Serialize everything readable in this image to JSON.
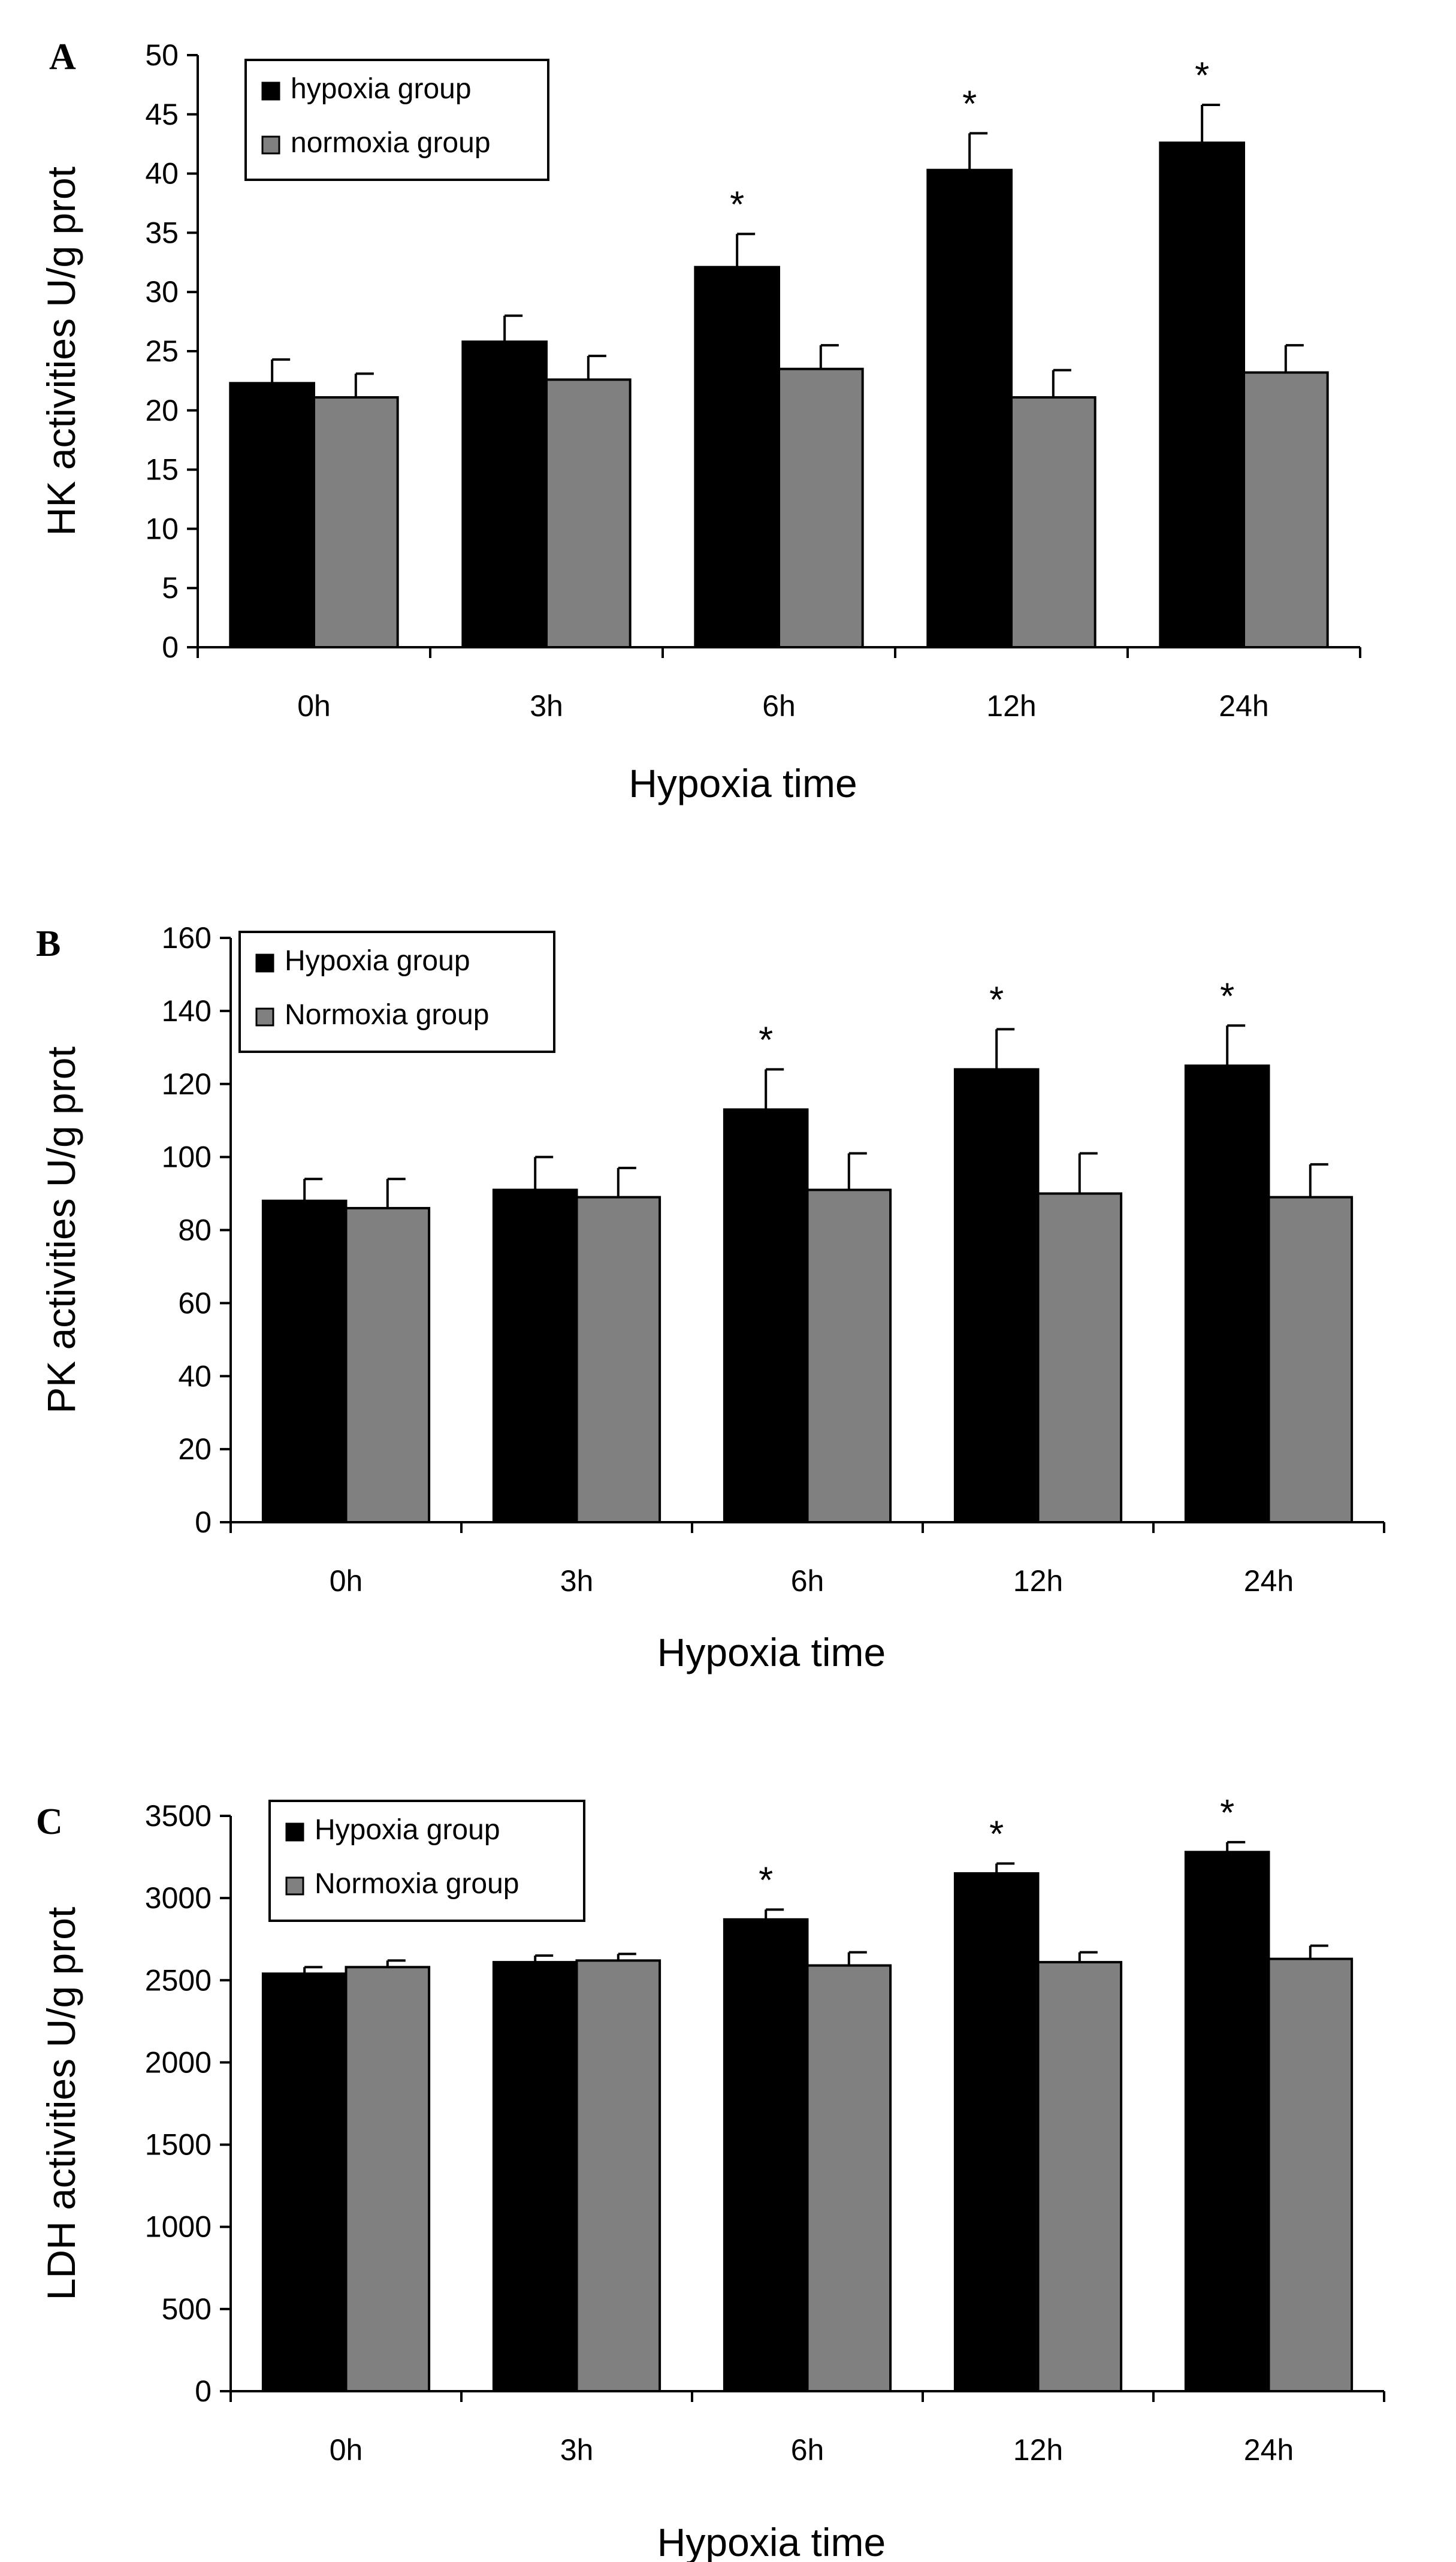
{
  "colors": {
    "hypoxia": "#000000",
    "normoxia": "#808080",
    "axis": "#000000"
  },
  "chart_data": [
    {
      "panel": "A",
      "type": "bar",
      "categories": [
        "0h",
        "3h",
        "6h",
        "12h",
        "24h"
      ],
      "ylabel": "HK activities U/g prot",
      "xlabel": "Hypoxia time",
      "ylim": [
        0,
        50
      ],
      "yticks": [
        0,
        5,
        10,
        15,
        20,
        25,
        30,
        35,
        40,
        45,
        50
      ],
      "legend_position": "top-left",
      "series": [
        {
          "name": "hypoxia group",
          "values": [
            22.3,
            25.8,
            32.1,
            40.3,
            42.6
          ],
          "errors": [
            2.0,
            2.2,
            2.8,
            3.1,
            3.2
          ]
        },
        {
          "name": "normoxia group",
          "values": [
            21.1,
            22.6,
            23.5,
            21.1,
            23.2
          ],
          "errors": [
            2.0,
            2.0,
            2.0,
            2.3,
            2.3
          ]
        }
      ],
      "significance_marker": "*",
      "significant_categories": [
        "6h",
        "12h",
        "24h"
      ]
    },
    {
      "panel": "B",
      "type": "bar",
      "categories": [
        "0h",
        "3h",
        "6h",
        "12h",
        "24h"
      ],
      "ylabel": "PK activities U/g prot",
      "xlabel": "Hypoxia time",
      "ylim": [
        0,
        160
      ],
      "yticks": [
        0,
        20,
        40,
        60,
        80,
        100,
        120,
        140,
        160
      ],
      "legend_position": "top-left",
      "series": [
        {
          "name": "Hypoxia group",
          "values": [
            88,
            91,
            113,
            124,
            125
          ],
          "errors": [
            6,
            9,
            11,
            11,
            11
          ]
        },
        {
          "name": "Normoxia group",
          "values": [
            86,
            89,
            91,
            90,
            89
          ],
          "errors": [
            8,
            8,
            10,
            11,
            9
          ]
        }
      ],
      "significance_marker": "*",
      "significant_categories": [
        "6h",
        "12h",
        "24h"
      ]
    },
    {
      "panel": "C",
      "type": "bar",
      "categories": [
        "0h",
        "3h",
        "6h",
        "12h",
        "24h"
      ],
      "ylabel": "LDH activities U/g prot",
      "xlabel": "Hypoxia time",
      "ylim": [
        0,
        3500
      ],
      "yticks": [
        0,
        500,
        1000,
        1500,
        2000,
        2500,
        3000,
        3500
      ],
      "legend_position": "top-left",
      "series": [
        {
          "name": "Hypoxia group",
          "values": [
            2540,
            2610,
            2870,
            3150,
            3280
          ],
          "errors": [
            40,
            40,
            60,
            60,
            60
          ]
        },
        {
          "name": "Normoxia group",
          "values": [
            2580,
            2620,
            2590,
            2610,
            2630
          ],
          "errors": [
            40,
            40,
            80,
            60,
            80
          ]
        }
      ],
      "significance_marker": "*",
      "significant_categories": [
        "6h",
        "12h",
        "24h"
      ]
    }
  ]
}
